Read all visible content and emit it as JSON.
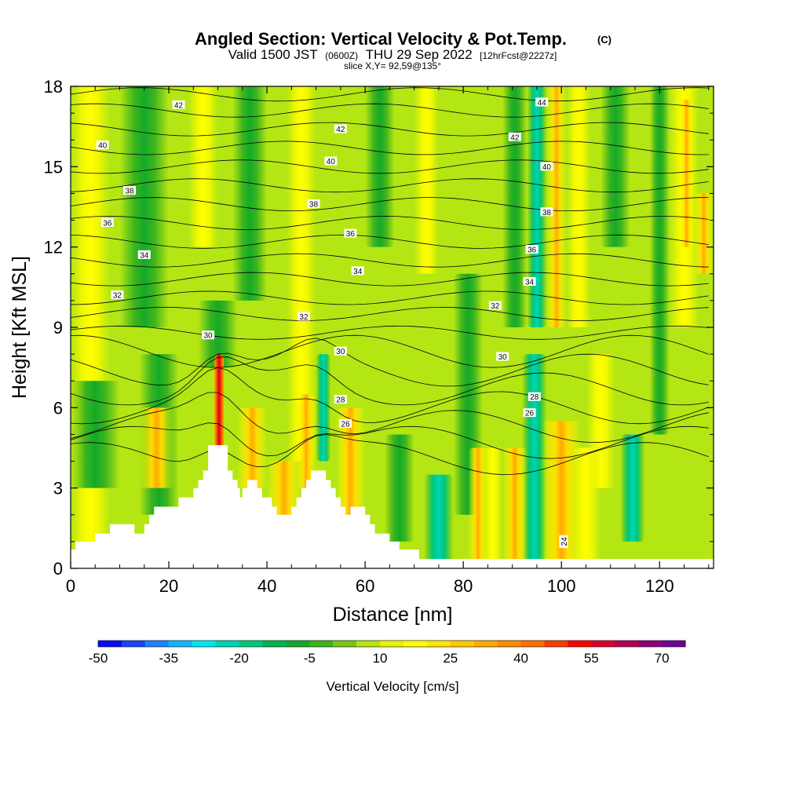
{
  "chart_data": {
    "type": "heatmap",
    "title": "Angled Section: Vertical Velocity & Pot.Temp.",
    "title_mark": "(C)",
    "subtitle_main": "Valid 1500 JST",
    "subtitle_z": "(0600Z)",
    "subtitle_date": "THU 29 Sep 2022",
    "subtitle_fcst": "[12hrFcst@2227z]",
    "slice_label": "slice X,Y= 92,59@135°",
    "xlabel": "Distance [nm]",
    "ylabel": "Height [Kft MSL]",
    "xlim": [
      0,
      131
    ],
    "ylim": [
      0,
      18
    ],
    "x_ticks": [
      "0",
      "20",
      "40",
      "60",
      "80",
      "100",
      "120"
    ],
    "y_ticks": [
      "0",
      "3",
      "6",
      "9",
      "12",
      "15",
      "18"
    ],
    "colorbar": {
      "label": "Vertical Velocity [cm/s]",
      "min": -50,
      "step": 5,
      "max": 75,
      "tick_labels": [
        "-50",
        "-35",
        "-20",
        "-5",
        "10",
        "25",
        "40",
        "55",
        "70"
      ],
      "colors": [
        "#0a0aff",
        "#1446ff",
        "#1e82ff",
        "#14b4ff",
        "#00e6f0",
        "#00d2b4",
        "#00c878",
        "#00b450",
        "#14aa28",
        "#3cb41e",
        "#78c814",
        "#b4e614",
        "#e6f500",
        "#ffff00",
        "#ffe600",
        "#ffc800",
        "#ffaa00",
        "#ff8c00",
        "#ff6e00",
        "#ff3c00",
        "#ff0000",
        "#dc0028",
        "#b40050",
        "#8c0078",
        "#6e0096"
      ]
    },
    "theta_contour_labels": [
      {
        "text": "42",
        "x": 22,
        "z": 17.3
      },
      {
        "text": "42",
        "x": 55,
        "z": 16.4
      },
      {
        "text": "44",
        "x": 96,
        "z": 17.4
      },
      {
        "text": "42",
        "x": 90.5,
        "z": 16.1
      },
      {
        "text": "40",
        "x": 6.5,
        "z": 15.8
      },
      {
        "text": "40",
        "x": 53,
        "z": 15.2
      },
      {
        "text": "40",
        "x": 97,
        "z": 15.0
      },
      {
        "text": "38",
        "x": 12,
        "z": 14.1
      },
      {
        "text": "38",
        "x": 49.5,
        "z": 13.6
      },
      {
        "text": "38",
        "x": 97,
        "z": 13.3
      },
      {
        "text": "36",
        "x": 7.5,
        "z": 12.9
      },
      {
        "text": "36",
        "x": 57,
        "z": 12.5
      },
      {
        "text": "36",
        "x": 94,
        "z": 11.9
      },
      {
        "text": "34",
        "x": 15,
        "z": 11.7
      },
      {
        "text": "34",
        "x": 58.5,
        "z": 11.1
      },
      {
        "text": "34",
        "x": 93.5,
        "z": 10.7
      },
      {
        "text": "32",
        "x": 9.5,
        "z": 10.2
      },
      {
        "text": "32",
        "x": 47.5,
        "z": 9.4
      },
      {
        "text": "32",
        "x": 86.5,
        "z": 9.8
      },
      {
        "text": "30",
        "x": 28,
        "z": 8.7
      },
      {
        "text": "30",
        "x": 55,
        "z": 8.1
      },
      {
        "text": "30",
        "x": 88,
        "z": 7.9
      },
      {
        "text": "28",
        "x": 55,
        "z": 6.3
      },
      {
        "text": "28",
        "x": 94.5,
        "z": 6.4
      },
      {
        "text": "26",
        "x": 56,
        "z": 5.4
      },
      {
        "text": "26",
        "x": 93.5,
        "z": 5.8
      },
      {
        "text": "24",
        "x": 100.5,
        "z": 1.0,
        "rotated": true
      }
    ],
    "terrain_kft": [
      {
        "x": 0,
        "z": 0.7
      },
      {
        "x": 1,
        "z": 0.7
      },
      {
        "x": 1,
        "z": 1.0
      },
      {
        "x": 5,
        "z": 1.0
      },
      {
        "x": 5,
        "z": 1.3
      },
      {
        "x": 8,
        "z": 1.3
      },
      {
        "x": 8,
        "z": 1.65
      },
      {
        "x": 13,
        "z": 1.65
      },
      {
        "x": 13,
        "z": 1.3
      },
      {
        "x": 15,
        "z": 1.3
      },
      {
        "x": 15,
        "z": 1.65
      },
      {
        "x": 16,
        "z": 1.65
      },
      {
        "x": 16,
        "z": 2.0
      },
      {
        "x": 17,
        "z": 2.0
      },
      {
        "x": 17,
        "z": 2.3
      },
      {
        "x": 22,
        "z": 2.3
      },
      {
        "x": 22,
        "z": 2.65
      },
      {
        "x": 25,
        "z": 2.65
      },
      {
        "x": 25,
        "z": 3.0
      },
      {
        "x": 26,
        "z": 3.0
      },
      {
        "x": 26,
        "z": 3.3
      },
      {
        "x": 27,
        "z": 3.3
      },
      {
        "x": 27,
        "z": 3.65
      },
      {
        "x": 28,
        "z": 3.65
      },
      {
        "x": 28,
        "z": 4.6
      },
      {
        "x": 32,
        "z": 4.6
      },
      {
        "x": 32,
        "z": 3.65
      },
      {
        "x": 33,
        "z": 3.65
      },
      {
        "x": 33,
        "z": 3.3
      },
      {
        "x": 34,
        "z": 3.3
      },
      {
        "x": 34,
        "z": 3.0
      },
      {
        "x": 34.5,
        "z": 3.0
      },
      {
        "x": 34.5,
        "z": 2.65
      },
      {
        "x": 35,
        "z": 2.65
      },
      {
        "x": 35,
        "z": 3.0
      },
      {
        "x": 36,
        "z": 3.0
      },
      {
        "x": 36,
        "z": 3.3
      },
      {
        "x": 38,
        "z": 3.3
      },
      {
        "x": 38,
        "z": 3.0
      },
      {
        "x": 39,
        "z": 3.0
      },
      {
        "x": 39,
        "z": 2.65
      },
      {
        "x": 41,
        "z": 2.65
      },
      {
        "x": 41,
        "z": 2.3
      },
      {
        "x": 42,
        "z": 2.3
      },
      {
        "x": 42,
        "z": 2.0
      },
      {
        "x": 45,
        "z": 2.0
      },
      {
        "x": 45,
        "z": 2.3
      },
      {
        "x": 46,
        "z": 2.3
      },
      {
        "x": 46,
        "z": 2.65
      },
      {
        "x": 47,
        "z": 2.65
      },
      {
        "x": 47,
        "z": 3.0
      },
      {
        "x": 48,
        "z": 3.0
      },
      {
        "x": 48,
        "z": 3.3
      },
      {
        "x": 49,
        "z": 3.3
      },
      {
        "x": 49,
        "z": 3.65
      },
      {
        "x": 52,
        "z": 3.65
      },
      {
        "x": 52,
        "z": 3.3
      },
      {
        "x": 53,
        "z": 3.3
      },
      {
        "x": 53,
        "z": 3.0
      },
      {
        "x": 54,
        "z": 3.0
      },
      {
        "x": 54,
        "z": 2.65
      },
      {
        "x": 55,
        "z": 2.65
      },
      {
        "x": 55,
        "z": 2.3
      },
      {
        "x": 56,
        "z": 2.3
      },
      {
        "x": 56,
        "z": 2.0
      },
      {
        "x": 57,
        "z": 2.0
      },
      {
        "x": 57,
        "z": 2.3
      },
      {
        "x": 60,
        "z": 2.3
      },
      {
        "x": 60,
        "z": 2.0
      },
      {
        "x": 61,
        "z": 2.0
      },
      {
        "x": 61,
        "z": 1.65
      },
      {
        "x": 62,
        "z": 1.65
      },
      {
        "x": 62,
        "z": 1.3
      },
      {
        "x": 65,
        "z": 1.3
      },
      {
        "x": 65,
        "z": 1.0
      },
      {
        "x": 67,
        "z": 1.0
      },
      {
        "x": 67,
        "z": 0.7
      },
      {
        "x": 71,
        "z": 0.7
      },
      {
        "x": 71,
        "z": 0.35
      },
      {
        "x": 131,
        "z": 0.35
      }
    ]
  }
}
